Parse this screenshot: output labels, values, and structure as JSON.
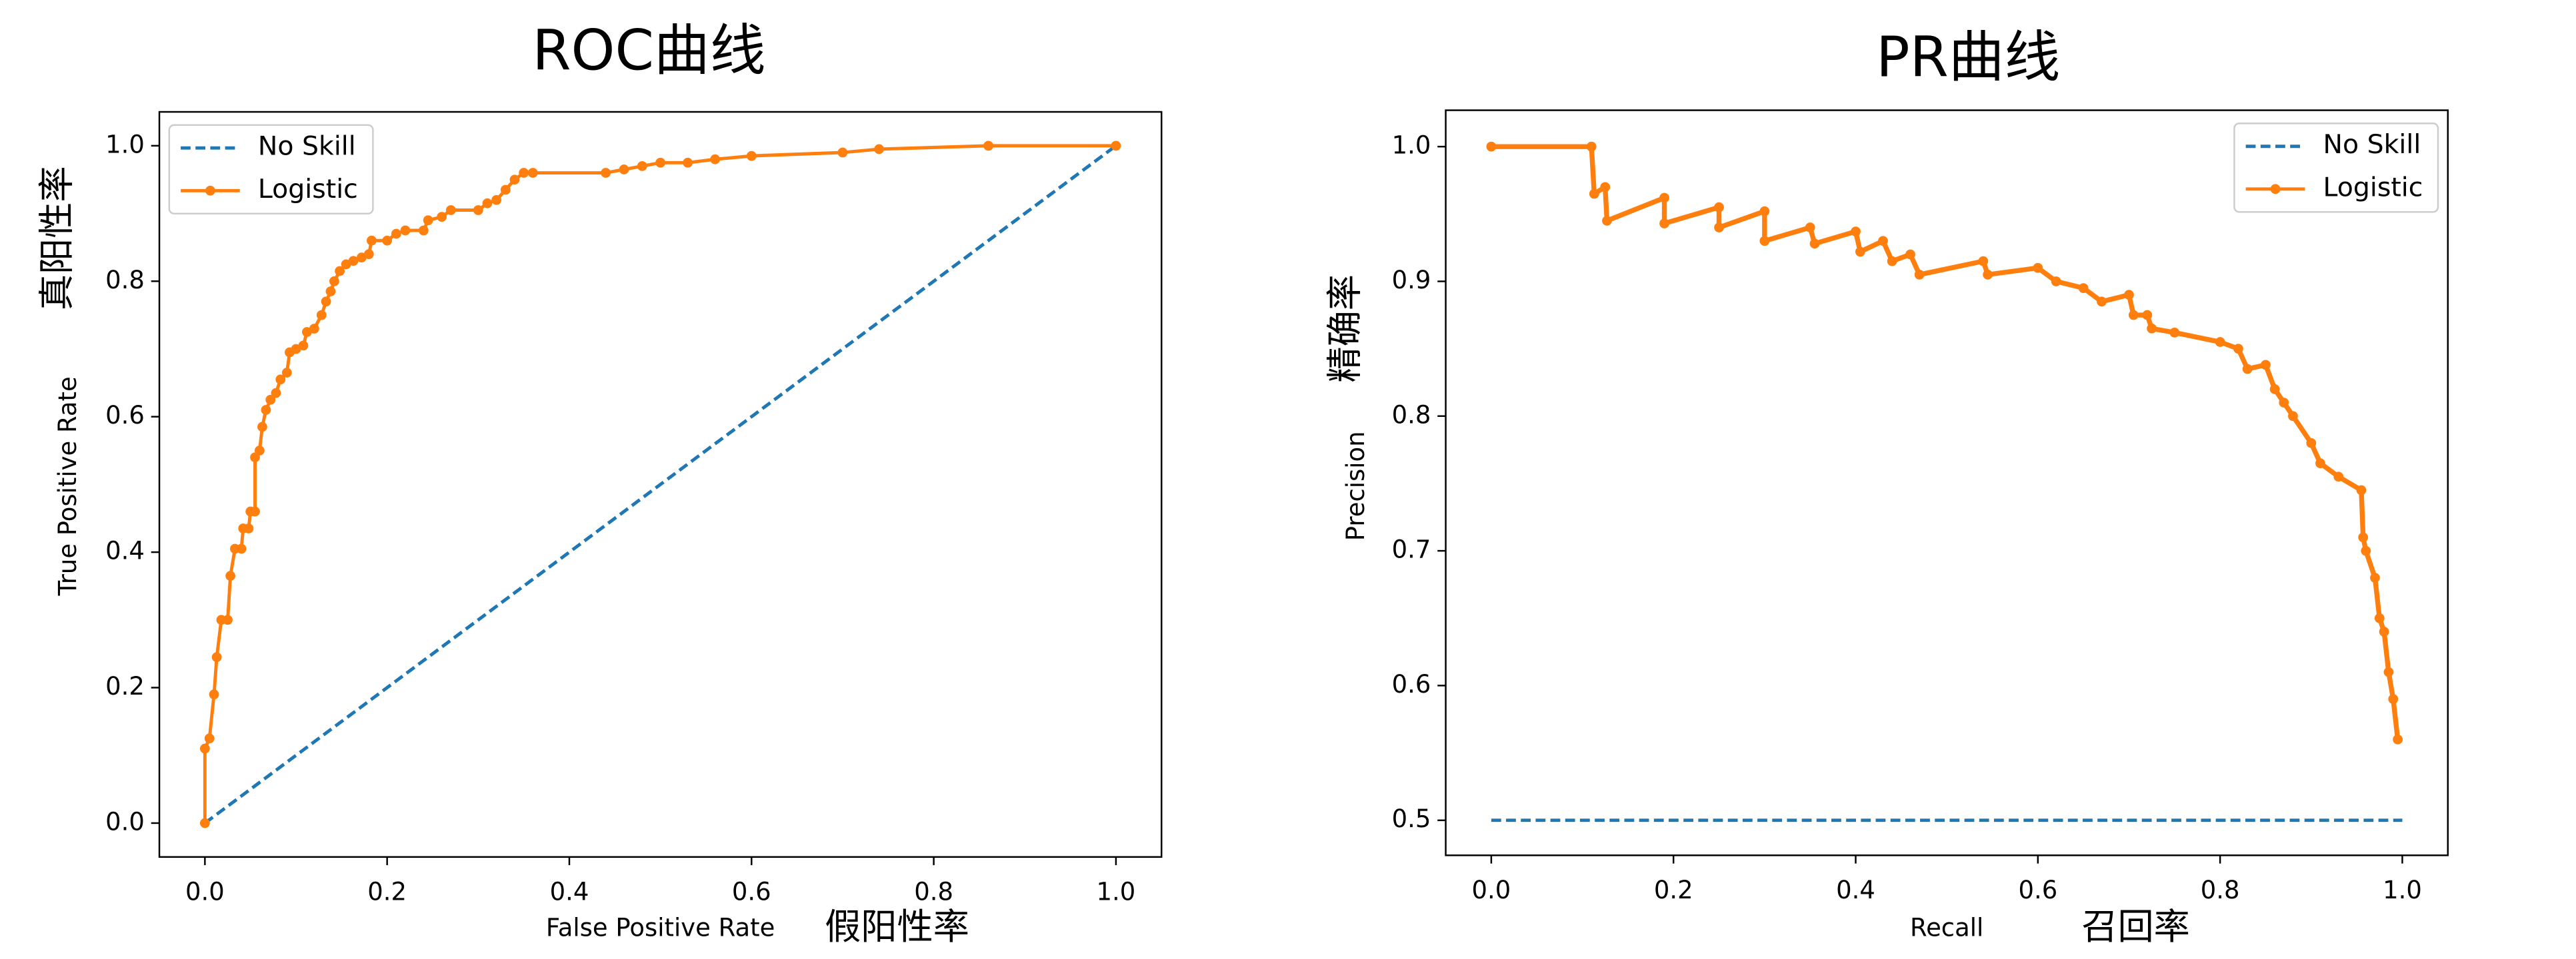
{
  "chart_data": [
    {
      "type": "line",
      "title": "ROC曲线",
      "xlabel": "False Positive Rate",
      "xlabel_zh": "假阳性率",
      "ylabel": "True Positive Rate",
      "ylabel_zh": "真阳性率",
      "xlim": [
        -0.05,
        1.05
      ],
      "ylim": [
        -0.05,
        1.05
      ],
      "xticks": [
        {
          "value": 0,
          "label": "0.0"
        },
        0.2,
        0.4,
        0.6,
        0.8,
        {
          "value": 1,
          "label": "1.0"
        }
      ],
      "yticks": [
        {
          "value": 0,
          "label": "0.0"
        },
        0.2,
        0.4,
        0.6,
        0.8,
        {
          "value": 1,
          "label": "1.0"
        }
      ],
      "legend": "upper-left",
      "series": [
        {
          "name": "No Skill",
          "color": "#1f77b4",
          "style": "dashed",
          "x": [
            0,
            1
          ],
          "values": [
            0,
            1
          ]
        },
        {
          "name": "Logistic",
          "color": "#ff7f0e",
          "style": "marker",
          "x": [
            0,
            0,
            0.005,
            0.01,
            0.013,
            0.018,
            0.025,
            0.028,
            0.033,
            0.04,
            0.042,
            0.048,
            0.05,
            0.055,
            0.055,
            0.06,
            0.063,
            0.067,
            0.072,
            0.078,
            0.083,
            0.09,
            0.093,
            0.1,
            0.108,
            0.112,
            0.12,
            0.128,
            0.133,
            0.138,
            0.142,
            0.148,
            0.155,
            0.163,
            0.172,
            0.18,
            0.183,
            0.2,
            0.21,
            0.22,
            0.24,
            0.245,
            0.26,
            0.27,
            0.3,
            0.31,
            0.32,
            0.33,
            0.34,
            0.35,
            0.36,
            0.44,
            0.46,
            0.48,
            0.5,
            0.53,
            0.56,
            0.6,
            0.7,
            0.74,
            0.86,
            1
          ],
          "values": [
            0,
            0.11,
            0.125,
            0.19,
            0.245,
            0.3,
            0.3,
            0.365,
            0.405,
            0.405,
            0.435,
            0.435,
            0.46,
            0.46,
            0.54,
            0.55,
            0.585,
            0.61,
            0.625,
            0.635,
            0.655,
            0.665,
            0.695,
            0.7,
            0.705,
            0.725,
            0.73,
            0.75,
            0.77,
            0.785,
            0.8,
            0.815,
            0.825,
            0.83,
            0.835,
            0.84,
            0.86,
            0.86,
            0.87,
            0.875,
            0.875,
            0.89,
            0.895,
            0.905,
            0.905,
            0.915,
            0.92,
            0.935,
            0.95,
            0.96,
            0.96,
            0.96,
            0.965,
            0.97,
            0.975,
            0.975,
            0.98,
            0.985,
            0.99,
            0.995,
            1,
            1
          ]
        }
      ]
    },
    {
      "type": "line",
      "title": "PR曲线",
      "xlabel": "Recall",
      "xlabel_zh": "召回率",
      "ylabel": "Precision",
      "ylabel_zh": "精确率",
      "xlim": [
        -0.05,
        1.05
      ],
      "ylim": [
        0.474,
        1.027
      ],
      "xticks": [
        {
          "value": 0,
          "label": "0.0"
        },
        0.2,
        0.4,
        0.6,
        0.8,
        {
          "value": 1,
          "label": "1.0"
        }
      ],
      "yticks": [
        0.5,
        0.6,
        0.7,
        0.8,
        0.9,
        {
          "value": 1,
          "label": "1.0"
        }
      ],
      "legend": "upper-right",
      "series": [
        {
          "name": "No Skill",
          "color": "#1f77b4",
          "style": "dashed",
          "x": [
            0,
            1
          ],
          "values": [
            0.5,
            0.5
          ]
        },
        {
          "name": "Logistic",
          "color": "#ff7f0e",
          "style": "marker",
          "x": [
            0,
            0.11,
            0.113,
            0.125,
            0.127,
            0.19,
            0.19,
            0.25,
            0.25,
            0.3,
            0.3,
            0.35,
            0.355,
            0.4,
            0.405,
            0.43,
            0.44,
            0.46,
            0.47,
            0.54,
            0.545,
            0.6,
            0.62,
            0.65,
            0.67,
            0.7,
            0.705,
            0.72,
            0.725,
            0.75,
            0.8,
            0.82,
            0.83,
            0.85,
            0.86,
            0.87,
            0.88,
            0.9,
            0.91,
            0.93,
            0.955,
            0.957,
            0.96,
            0.97,
            0.975,
            0.98,
            0.985,
            0.99,
            0.995
          ],
          "values": [
            1,
            1,
            0.965,
            0.97,
            0.945,
            0.962,
            0.943,
            0.955,
            0.94,
            0.952,
            0.93,
            0.94,
            0.928,
            0.937,
            0.922,
            0.93,
            0.915,
            0.92,
            0.905,
            0.915,
            0.905,
            0.91,
            0.9,
            0.895,
            0.885,
            0.89,
            0.875,
            0.875,
            0.865,
            0.862,
            0.855,
            0.85,
            0.835,
            0.838,
            0.82,
            0.81,
            0.8,
            0.78,
            0.765,
            0.755,
            0.745,
            0.71,
            0.7,
            0.68,
            0.65,
            0.64,
            0.61,
            0.59,
            0.56
          ]
        }
      ]
    }
  ]
}
